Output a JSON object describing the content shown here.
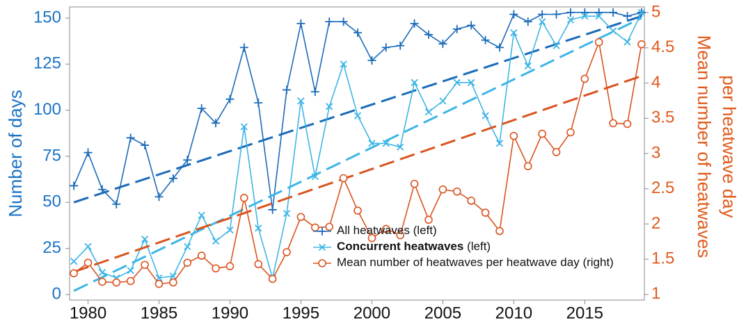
{
  "chart_data": {
    "type": "line",
    "ylabel": "Number of days",
    "y2label": [
      "Mean number of heatwaves",
      "per heatwave day"
    ],
    "x": [
      1979,
      1980,
      1981,
      1982,
      1983,
      1984,
      1985,
      1986,
      1987,
      1988,
      1989,
      1990,
      1991,
      1992,
      1993,
      1994,
      1995,
      1996,
      1997,
      1998,
      1999,
      2000,
      2001,
      2002,
      2003,
      2004,
      2005,
      2006,
      2007,
      2008,
      2009,
      2010,
      2011,
      2012,
      2013,
      2014,
      2015,
      2016,
      2017,
      2018,
      2019
    ],
    "xlim": [
      1978.7,
      2019.2
    ],
    "xticks": [
      1980,
      1985,
      1990,
      1995,
      2000,
      2005,
      2010,
      2015
    ],
    "ylim": [
      -3,
      156
    ],
    "yticks": [
      0,
      25,
      50,
      75,
      100,
      125,
      150
    ],
    "y2lim": [
      0.92,
      5.08
    ],
    "y2ticks": [
      1,
      1.5,
      2,
      2.5,
      3,
      3.5,
      4,
      4.5,
      5
    ],
    "left_color": "#1b73c6",
    "right_color": "#e05a1c",
    "series": [
      {
        "name": "All heatwaves",
        "note": "(left)",
        "bold": false,
        "color": "#1a6bb8",
        "marker": "plus",
        "axis": "y",
        "values": [
          59,
          77,
          57,
          49,
          85,
          81,
          53,
          63,
          73,
          101,
          93,
          106,
          134,
          104,
          46,
          111,
          147,
          110,
          148,
          148,
          142,
          127,
          134,
          135,
          147,
          141,
          136,
          144,
          146,
          138,
          134,
          152,
          148,
          152,
          152,
          153,
          153,
          153,
          153,
          151,
          153
        ],
        "trend": {
          "x": [
            1979,
            2019
          ],
          "values": [
            50,
            151
          ]
        }
      },
      {
        "name": "Concurrent heatwaves",
        "note": "(left)",
        "bold": true,
        "color": "#3db5e6",
        "marker": "cross",
        "axis": "y",
        "values": [
          18,
          26,
          12,
          9,
          13,
          30,
          9,
          10,
          26,
          43,
          29,
          35,
          91,
          36,
          9,
          44,
          105,
          64,
          102,
          125,
          97,
          82,
          82,
          80,
          115,
          99,
          105,
          115,
          115,
          97,
          82,
          142,
          124,
          148,
          135,
          149,
          151,
          151,
          143,
          137,
          153
        ],
        "trend": {
          "x": [
            1979,
            2019
          ],
          "values": [
            2,
            150
          ]
        }
      },
      {
        "name": "Mean number of heatwaves per heatwave day",
        "note": "(right)",
        "bold": false,
        "color": "#d9531e",
        "marker": "circle",
        "axis": "y2",
        "values": [
          1.3,
          1.45,
          1.18,
          1.17,
          1.19,
          1.42,
          1.15,
          1.17,
          1.45,
          1.55,
          1.37,
          1.4,
          2.37,
          1.43,
          1.22,
          1.6,
          2.1,
          1.95,
          1.96,
          2.65,
          2.19,
          1.8,
          1.93,
          1.84,
          2.57,
          2.06,
          2.49,
          2.46,
          2.33,
          2.16,
          1.9,
          3.25,
          2.82,
          3.28,
          3.02,
          3.3,
          4.06,
          4.58,
          3.43,
          3.42,
          4.55
        ],
        "trend": {
          "x": [
            1979,
            2019
          ],
          "values": [
            1.32,
            4.1
          ]
        }
      }
    ]
  }
}
